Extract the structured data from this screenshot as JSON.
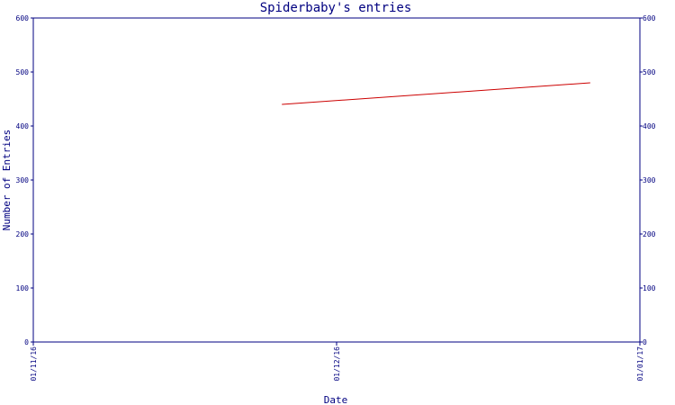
{
  "chart_data": {
    "type": "line",
    "title": "Spiderbaby's entries",
    "xlabel": "Date",
    "ylabel": "Number of Entries",
    "x_ticks": [
      "01/11/16",
      "01/12/16",
      "01/01/17"
    ],
    "y_ticks": [
      "0",
      "100",
      "200",
      "300",
      "400",
      "500",
      "600"
    ],
    "ylim": [
      0,
      600
    ],
    "xlim": [
      "2016-11-01",
      "2017-01-01"
    ],
    "secondary_y_axis": true,
    "grid": false,
    "series": [
      {
        "color": "#cc0000",
        "points": [
          {
            "x": "2016-11-26",
            "y": 440
          },
          {
            "x": "2016-12-27",
            "y": 480
          }
        ]
      }
    ]
  },
  "colors": {
    "axis": "#000080",
    "series": "#cc0000",
    "background": "#ffffff"
  }
}
